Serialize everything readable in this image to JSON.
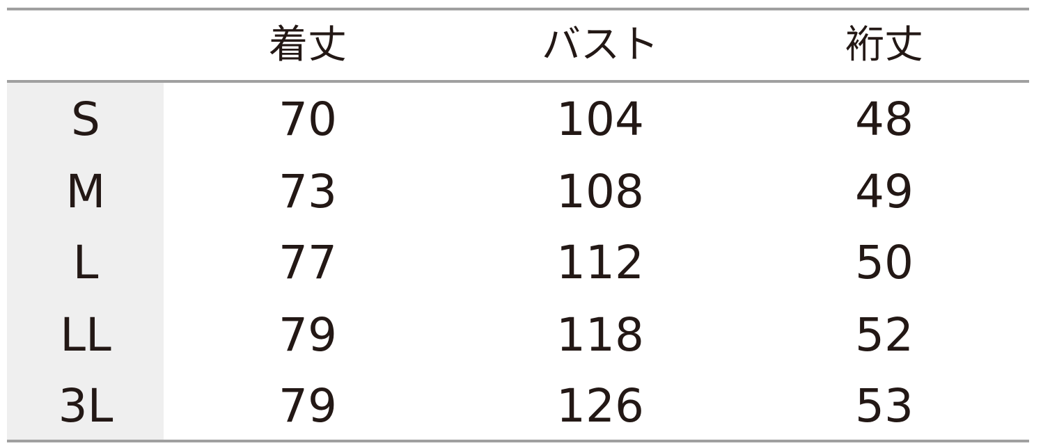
{
  "table": {
    "headers": [
      "",
      "着丈",
      "バスト",
      "裄丈"
    ],
    "rows": [
      {
        "size": "S",
        "values": [
          "70",
          "104",
          "48"
        ]
      },
      {
        "size": "M",
        "values": [
          "73",
          "108",
          "49"
        ]
      },
      {
        "size": "L",
        "values": [
          "77",
          "112",
          "50"
        ]
      },
      {
        "size": "LL",
        "values": [
          "79",
          "118",
          "52"
        ]
      },
      {
        "size": "3L",
        "values": [
          "79",
          "126",
          "53"
        ]
      }
    ]
  },
  "colors": {
    "rule": "#a0a0a0",
    "size_column_bg": "#efefef",
    "text": "#231815"
  }
}
